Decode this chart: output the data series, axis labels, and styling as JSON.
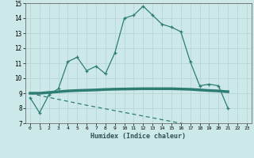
{
  "xlabel": "Humidex (Indice chaleur)",
  "x": [
    0,
    1,
    2,
    3,
    4,
    5,
    6,
    7,
    8,
    9,
    10,
    11,
    12,
    13,
    14,
    15,
    16,
    17,
    18,
    19,
    20,
    21,
    22,
    23
  ],
  "line1_y": [
    8.7,
    7.7,
    8.9,
    9.3,
    11.1,
    11.4,
    10.5,
    10.8,
    10.3,
    11.7,
    14.0,
    14.2,
    14.8,
    14.2,
    13.6,
    13.4,
    13.1,
    11.1,
    9.5,
    9.6,
    9.5,
    8.0,
    null,
    null
  ],
  "line2_y": [
    9.0,
    9.0,
    9.05,
    9.1,
    9.15,
    9.18,
    9.2,
    9.22,
    9.25,
    9.27,
    9.28,
    9.29,
    9.3,
    9.3,
    9.3,
    9.3,
    9.28,
    9.26,
    9.22,
    9.18,
    9.15,
    9.1,
    null,
    null
  ],
  "line3_y": [
    9.0,
    8.85,
    8.72,
    8.59,
    8.46,
    8.33,
    8.2,
    8.08,
    7.96,
    7.84,
    7.72,
    7.6,
    7.48,
    7.36,
    7.24,
    7.12,
    7.0,
    6.88,
    6.77,
    6.66,
    6.55,
    6.44,
    6.33,
    6.22
  ],
  "color": "#2e7d72",
  "bg_color": "#cce8e8",
  "grid_color": "#b8d4d4",
  "ylim": [
    7,
    15
  ],
  "xlim": [
    -0.5,
    23.5
  ]
}
